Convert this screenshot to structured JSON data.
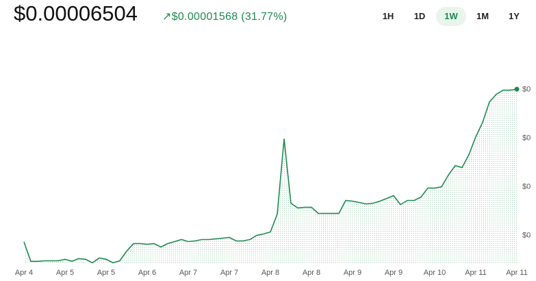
{
  "header": {
    "price": "$0.00006504",
    "change": "$0.00001568",
    "change_percent": "(31.77%)"
  },
  "tabs": {
    "items": [
      "1H",
      "1D",
      "1W",
      "1M",
      "1Y"
    ],
    "selected": 2
  },
  "chart_data": {
    "type": "line",
    "color": "#1e8a50",
    "categories": [
      "Apr 4",
      null,
      null,
      null,
      null,
      null,
      "Apr 5",
      null,
      null,
      null,
      null,
      null,
      "Apr 5",
      null,
      null,
      null,
      null,
      null,
      "Apr 6",
      null,
      null,
      null,
      null,
      null,
      "Apr 7",
      null,
      null,
      null,
      null,
      null,
      "Apr 7",
      null,
      null,
      null,
      null,
      null,
      "Apr 8",
      null,
      null,
      null,
      null,
      null,
      "Apr 8",
      null,
      null,
      null,
      null,
      null,
      "Apr 9",
      null,
      null,
      null,
      null,
      null,
      "Apr 9",
      null,
      null,
      null,
      null,
      null,
      "Apr 10",
      null,
      null,
      null,
      null,
      null,
      "Apr 11",
      null,
      null,
      null,
      null,
      null,
      "Apr 11"
    ],
    "values": [
      4.936e-05,
      4.736e-05,
      4.736e-05,
      4.742e-05,
      4.742e-05,
      4.742e-05,
      4.757e-05,
      4.736e-05,
      4.764e-05,
      4.757e-05,
      4.721e-05,
      4.771e-05,
      4.757e-05,
      4.721e-05,
      4.742e-05,
      4.841e-05,
      4.918e-05,
      4.918e-05,
      4.911e-05,
      4.918e-05,
      4.883e-05,
      4.918e-05,
      4.939e-05,
      4.96e-05,
      4.939e-05,
      4.946e-05,
      4.96e-05,
      4.96e-05,
      4.967e-05,
      4.974e-05,
      4.981e-05,
      4.946e-05,
      4.946e-05,
      4.96e-05,
      5.003e-05,
      5.017e-05,
      5.038e-05,
      5.22e-05,
      5.994e-05,
      5.333e-05,
      5.284e-05,
      5.291e-05,
      5.291e-05,
      5.228e-05,
      5.228e-05,
      5.228e-05,
      5.228e-05,
      5.361e-05,
      5.354e-05,
      5.34e-05,
      5.326e-05,
      5.333e-05,
      5.354e-05,
      5.382e-05,
      5.41e-05,
      5.319e-05,
      5.361e-05,
      5.361e-05,
      5.396e-05,
      5.488e-05,
      5.488e-05,
      5.502e-05,
      5.621e-05,
      5.72e-05,
      5.699e-05,
      5.832e-05,
      6.015e-05,
      6.163e-05,
      6.373e-05,
      6.451e-05,
      6.493e-05,
      6.493e-05,
      6.504e-05
    ],
    "ylim": [
      4.71e-05,
      6.61e-05
    ],
    "yticks": [
      {
        "value": 5e-05,
        "label": "$0"
      },
      {
        "value": 5.5e-05,
        "label": "$0"
      },
      {
        "value": 6e-05,
        "label": "$0"
      },
      {
        "value": 6.5e-05,
        "label": "$0"
      }
    ]
  }
}
